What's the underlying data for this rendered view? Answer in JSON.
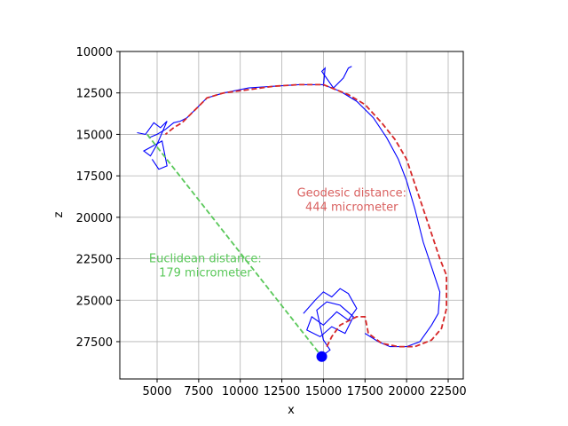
{
  "chart_data": {
    "type": "line",
    "xlabel": "x",
    "ylabel": "z",
    "xlim": [
      2759,
      23407
    ],
    "ylim": [
      10000,
      29750
    ],
    "y_inverted": true,
    "grid": true,
    "xticks": [
      5000,
      7500,
      10000,
      12500,
      15000,
      17500,
      20000,
      22500
    ],
    "yticks": [
      10000,
      12500,
      15000,
      17500,
      20000,
      22500,
      25000,
      27500
    ],
    "series": [
      {
        "color": "#0000ff",
        "style": "solid",
        "x": [
          17500,
          18300,
          19000,
          20000,
          20800,
          21500,
          21900,
          22000,
          21500,
          21000,
          20500,
          20000,
          19500,
          18800,
          18000,
          17000,
          16000,
          15000,
          13500,
          12000,
          10500,
          9000,
          8000,
          7300,
          6800,
          6400,
          6000,
          5500,
          5000,
          4500
        ],
        "y": [
          27000,
          27500,
          27800,
          27800,
          27500,
          26500,
          25800,
          24500,
          23000,
          21500,
          19500,
          17800,
          16500,
          15200,
          14000,
          13000,
          12400,
          12000,
          12000,
          12100,
          12200,
          12500,
          12800,
          13500,
          14000,
          14200,
          14300,
          14700,
          15000,
          15200
        ]
      },
      {
        "color": "#0000ff",
        "style": "solid",
        "x": [
          13800,
          14500,
          15000,
          15500,
          16000,
          16500,
          17000,
          16500,
          15800,
          15000,
          14300,
          14000,
          14800,
          15500,
          16300,
          16800,
          16000,
          15200,
          14600,
          15000,
          15400,
          15000
        ],
        "y": [
          25800,
          25000,
          24500,
          24800,
          24300,
          24600,
          25500,
          26200,
          25700,
          26500,
          26000,
          26800,
          27200,
          26600,
          27000,
          26000,
          25300,
          25100,
          25600,
          27400,
          28000,
          28300
        ]
      },
      {
        "color": "#0000ff",
        "style": "solid",
        "x": [
          3800,
          4300,
          4800,
          5200,
          5600,
          5000,
          4600,
          4200,
          5300,
          5600,
          5100,
          4700
        ],
        "y": [
          14900,
          15000,
          14300,
          14600,
          14200,
          15600,
          16300,
          16000,
          15400,
          16900,
          17100,
          16500
        ]
      },
      {
        "color": "#0000ff",
        "style": "solid",
        "x": [
          15000,
          15100,
          14900,
          15600,
          16200,
          16500,
          16700
        ],
        "y": [
          12100,
          11000,
          11200,
          12200,
          11600,
          11000,
          10900
        ]
      },
      {
        "color": "#d62728",
        "style": "dashed",
        "x": [
          15200,
          15500,
          16000,
          17000,
          17500,
          17700,
          18500,
          19500,
          20500,
          21500,
          22100,
          22400,
          22400,
          22000,
          21500,
          21000,
          20500,
          20000,
          19300,
          18500,
          17500,
          16500,
          15000,
          13500,
          12000,
          10500,
          9000,
          8000,
          7500,
          7000,
          6500,
          6000,
          5500
        ],
        "y": [
          27800,
          27200,
          26500,
          26000,
          26000,
          27000,
          27600,
          27800,
          27800,
          27400,
          26700,
          25500,
          23500,
          22500,
          21000,
          19500,
          18000,
          16500,
          15300,
          14300,
          13200,
          12600,
          12000,
          12000,
          12100,
          12300,
          12500,
          12800,
          13300,
          13800,
          14300,
          14600,
          15000
        ]
      },
      {
        "color": "#5ac85a",
        "style": "dashed",
        "x": [
          4400,
          14900
        ],
        "y": [
          15000,
          28400
        ]
      }
    ],
    "soma": {
      "x": 14900,
      "y": 28400,
      "color": "#0000ff"
    },
    "annotations": [
      {
        "lines": [
          "Geodesic distance:",
          "444 micrometer"
        ],
        "x": 16700,
        "y": 18750,
        "color": "#d9605f"
      },
      {
        "lines": [
          "Euclidean distance:",
          "179 micrometer"
        ],
        "x": 7900,
        "y": 22700,
        "color": "#5ac85a"
      }
    ]
  }
}
